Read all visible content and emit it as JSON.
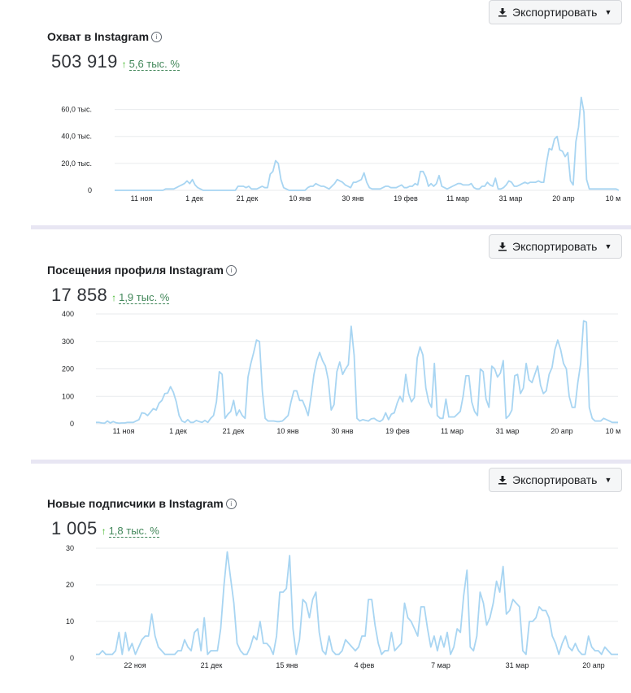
{
  "export_label": "Экспортировать",
  "reach": {
    "title": "Охват в Instagram",
    "value": "503 919",
    "delta": "5,6 тыс. %",
    "chart_data": {
      "type": "line",
      "title": "Охват в Instagram",
      "ylim": [
        0,
        70000
      ],
      "y_ticks": [
        0,
        20000,
        40000,
        60000
      ],
      "y_tick_labels": [
        "0",
        "20,0 тыс.",
        "40,0 тыс.",
        "60,0 тыс."
      ],
      "x_tick_labels": [
        "11 ноя",
        "1 дек",
        "21 дек",
        "10 янв",
        "30 янв",
        "19 фев",
        "11 мар",
        "31 мар",
        "20 апр",
        "10 м"
      ],
      "grid": true,
      "series_color": "#a8d5f2",
      "values": [
        0,
        0,
        0,
        0,
        0,
        0,
        0,
        0,
        0,
        0,
        0,
        0,
        0,
        0,
        0,
        0,
        0,
        0,
        0,
        1000,
        1000,
        1000,
        1000,
        2000,
        3000,
        4000,
        5000,
        7000,
        5000,
        8000,
        4000,
        2000,
        1000,
        0,
        0,
        0,
        0,
        0,
        0,
        0,
        0,
        0,
        0,
        0,
        0,
        0,
        3000,
        3000,
        3000,
        2000,
        3000,
        1000,
        1000,
        1000,
        2000,
        3000,
        2000,
        2000,
        12000,
        14000,
        22000,
        20000,
        8000,
        2000,
        1000,
        0,
        0,
        0,
        0,
        0,
        0,
        0,
        2000,
        3000,
        3000,
        5000,
        4000,
        3000,
        3000,
        2000,
        1000,
        3000,
        5000,
        8000,
        7000,
        6000,
        4000,
        3000,
        2000,
        6000,
        6000,
        7000,
        8000,
        13000,
        6000,
        2000,
        1000,
        1000,
        1000,
        1000,
        2000,
        3000,
        3000,
        2000,
        2000,
        2000,
        3000,
        4000,
        2000,
        2000,
        3000,
        3000,
        5000,
        4000,
        14000,
        14000,
        10000,
        3000,
        5000,
        3000,
        5000,
        11000,
        3000,
        2000,
        1000,
        2000,
        3000,
        4000,
        5000,
        5000,
        4000,
        4000,
        4000,
        5000,
        2000,
        1000,
        1000,
        3000,
        3000,
        6000,
        4000,
        3000,
        9000,
        1000,
        1000,
        2000,
        4000,
        7000,
        6000,
        3000,
        3000,
        4000,
        5000,
        6000,
        5000,
        6000,
        6000,
        6000,
        7000,
        6000,
        6000,
        20000,
        31000,
        30000,
        38000,
        40000,
        30000,
        29000,
        25000,
        28000,
        7000,
        4000,
        36000,
        47000,
        69000,
        58000,
        8000,
        1000,
        1000,
        1000,
        1000,
        1000,
        1000,
        1000,
        1000,
        1000,
        1000,
        1000,
        0
      ]
    }
  },
  "profile_visits": {
    "title": "Посещения профиля Instagram",
    "value": "17 858",
    "delta": "1,9 тыс. %",
    "chart_data": {
      "type": "line",
      "title": "Посещения профиля Instagram",
      "ylim": [
        0,
        400
      ],
      "y_ticks": [
        0,
        100,
        200,
        300,
        400
      ],
      "y_tick_labels": [
        "0",
        "100",
        "200",
        "300",
        "400"
      ],
      "x_tick_labels": [
        "11 ноя",
        "1 дек",
        "21 дек",
        "10 янв",
        "30 янв",
        "19 фев",
        "11 мар",
        "31 мар",
        "20 апр",
        "10 м"
      ],
      "grid": true,
      "series_color": "#a8d5f2",
      "values": [
        5,
        5,
        3,
        2,
        10,
        3,
        8,
        4,
        2,
        3,
        3,
        5,
        5,
        5,
        10,
        15,
        40,
        38,
        30,
        42,
        55,
        50,
        75,
        85,
        110,
        112,
        135,
        115,
        80,
        30,
        10,
        5,
        15,
        5,
        5,
        12,
        8,
        5,
        12,
        5,
        20,
        30,
        80,
        190,
        180,
        20,
        35,
        45,
        85,
        30,
        50,
        30,
        20,
        170,
        220,
        260,
        305,
        300,
        120,
        20,
        10,
        10,
        10,
        8,
        8,
        10,
        20,
        30,
        80,
        120,
        120,
        85,
        85,
        60,
        30,
        100,
        180,
        230,
        260,
        230,
        210,
        160,
        50,
        70,
        190,
        225,
        180,
        200,
        215,
        355,
        250,
        20,
        10,
        15,
        12,
        10,
        18,
        20,
        12,
        8,
        15,
        40,
        15,
        35,
        40,
        75,
        100,
        80,
        180,
        110,
        80,
        95,
        240,
        280,
        250,
        130,
        80,
        60,
        220,
        30,
        20,
        20,
        90,
        25,
        25,
        25,
        35,
        45,
        100,
        175,
        175,
        80,
        45,
        30,
        200,
        190,
        90,
        60,
        210,
        200,
        170,
        185,
        230,
        20,
        30,
        50,
        175,
        180,
        110,
        130,
        220,
        160,
        150,
        180,
        210,
        140,
        110,
        120,
        180,
        205,
        270,
        305,
        270,
        220,
        200,
        100,
        60,
        60,
        150,
        220,
        375,
        370,
        60,
        20,
        10,
        10,
        10,
        20,
        15,
        10,
        5,
        5,
        5
      ]
    }
  },
  "followers": {
    "title": "Новые подписчики в Instagram",
    "value": "1 005",
    "delta": "1,8 тыс. %",
    "chart_data": {
      "type": "line",
      "title": "Новые подписчики в Instagram",
      "ylim": [
        0,
        30
      ],
      "y_ticks": [
        0,
        10,
        20,
        30
      ],
      "y_tick_labels": [
        "0",
        "10",
        "20",
        "30"
      ],
      "x_tick_labels": [
        "22 ноя",
        "21 дек",
        "15 янв",
        "4 фев",
        "7 мар",
        "31 мар",
        "20 апр"
      ],
      "grid": true,
      "series_color": "#a8d5f2",
      "values": [
        1,
        1,
        2,
        1,
        1,
        1,
        2,
        7,
        1,
        7,
        2,
        4,
        1,
        3,
        5,
        6,
        6,
        12,
        6,
        3,
        2,
        1,
        1,
        1,
        1,
        2,
        2,
        5,
        3,
        2,
        7,
        8,
        2,
        11,
        1,
        2,
        2,
        2,
        8,
        20,
        29,
        22,
        15,
        4,
        2,
        1,
        1,
        3,
        6,
        5,
        10,
        4,
        4,
        3,
        1,
        6,
        18,
        18,
        19,
        28,
        8,
        1,
        5,
        16,
        15,
        11,
        16,
        18,
        7,
        2,
        1,
        6,
        2,
        1,
        1,
        2,
        5,
        4,
        3,
        2,
        3,
        6,
        6,
        16,
        16,
        9,
        4,
        1,
        2,
        2,
        7,
        2,
        3,
        4,
        15,
        11,
        10,
        8,
        6,
        14,
        14,
        8,
        3,
        6,
        2,
        6,
        3,
        7,
        1,
        3,
        8,
        7,
        17,
        24,
        3,
        2,
        6,
        18,
        15,
        9,
        11,
        15,
        21,
        18,
        25,
        12,
        13,
        16,
        15,
        14,
        2,
        1,
        10,
        10,
        11,
        14,
        13,
        13,
        11,
        6,
        4,
        1,
        4,
        6,
        3,
        2,
        4,
        2,
        1,
        1,
        6,
        3,
        2,
        2,
        1,
        3,
        2,
        1,
        1,
        1
      ]
    }
  }
}
